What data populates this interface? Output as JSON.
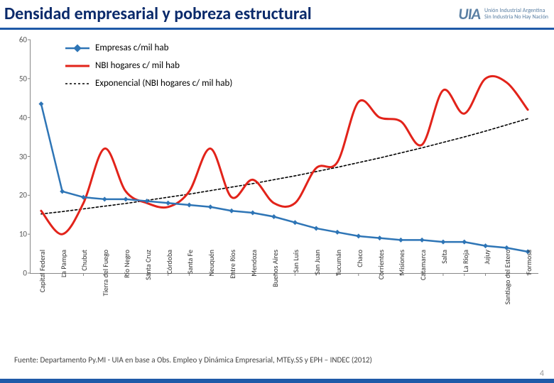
{
  "page": {
    "title": "Densidad empresarial y pobreza estructural",
    "title_color": "#0a2a6b",
    "title_fontsize": 24,
    "header_underline_color": "#1f5aa8",
    "logo_text": "UIA",
    "logo_line1": "Unión Industrial Argentina",
    "logo_line2": "Sin Industria No Hay Nación",
    "source": "Fuente: Departamento Py.MI - UIA en base a Obs. Empleo y Dinámica Empresarial, MTEy.SS y EPH – INDEC (2012)",
    "page_number": "4",
    "footer_bar_color": "#1f5aa8"
  },
  "chart": {
    "type": "line",
    "background_color": "#ffffff",
    "axis_color": "#888888",
    "tick_mark_color": "#888888",
    "ylim": [
      0,
      60
    ],
    "yticks": [
      0,
      10,
      20,
      30,
      40,
      50,
      60
    ],
    "tick_fontsize": 11,
    "xlabel_fontsize": 10,
    "xlabel_rotation": -90,
    "categories": [
      "Capital Federal",
      "La Pampa",
      "Chubut",
      "Tierra del Fuego",
      "Río Negro",
      "Santa Cruz",
      "Córdoba",
      "Santa Fe",
      "Neuquén",
      "Entre Ríos",
      "Mendoza",
      "Buenos Aires",
      "San Luis",
      "San Juan",
      "Tucumán",
      "Chaco",
      "Corrientes",
      "Misiones",
      "Catamarca",
      "Salta",
      "La Rioja",
      "Jujuy",
      "Santiago del Estero",
      "Formosa"
    ],
    "series": {
      "empresas": {
        "label": "Empresas c/mil hab",
        "color": "#2e75b6",
        "line_width": 2.5,
        "marker": "diamond",
        "marker_size": 7,
        "values": [
          43.5,
          21,
          19.5,
          19,
          19,
          18.5,
          18,
          17.5,
          17,
          16,
          15.5,
          14.5,
          13,
          11.5,
          10.5,
          9.5,
          9,
          8.5,
          8.5,
          8,
          8,
          7,
          6.5,
          5.5
        ]
      },
      "nbi": {
        "label": "NBI hogares c/ mil hab",
        "color": "#e2231a",
        "line_width": 3,
        "marker": "none",
        "smoothing": "spline",
        "values": [
          16,
          10,
          18,
          32,
          21,
          18,
          17,
          21,
          32,
          19.5,
          24,
          18,
          18,
          27,
          28.5,
          44,
          40,
          39,
          33,
          47,
          41,
          50,
          49,
          42
        ]
      },
      "trend": {
        "label": "Exponencial (NBI hogares c/ mil hab)",
        "color": "#000000",
        "line_width": 1.6,
        "dash": "3,3",
        "marker": "none",
        "values": [
          15.2,
          15.8,
          16.5,
          17.2,
          17.9,
          18.7,
          19.5,
          20.3,
          21.2,
          22.1,
          23.0,
          24.0,
          25.0,
          26.1,
          27.2,
          28.4,
          29.6,
          30.9,
          32.2,
          33.6,
          35.0,
          36.5,
          38.1,
          39.7
        ]
      }
    },
    "legend": {
      "position": "top-left-inside",
      "fontsize": 13,
      "items": [
        "empresas",
        "nbi",
        "trend"
      ]
    }
  }
}
